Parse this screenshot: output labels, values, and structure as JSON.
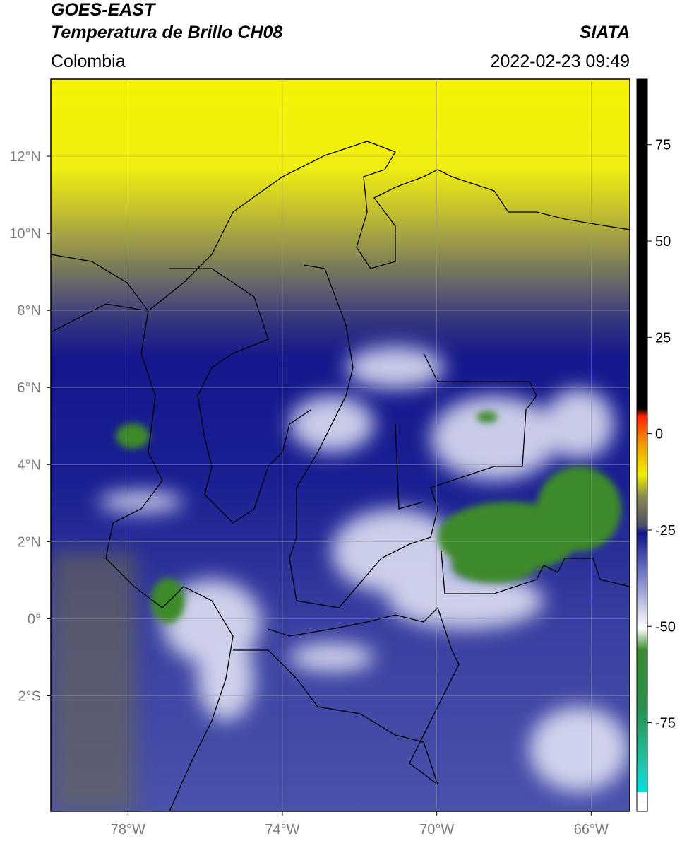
{
  "header": {
    "title": "GOES-EAST",
    "subtitle": "Temperatura de Brillo CH08",
    "source": "SIATA",
    "region": "Colombia",
    "datetime": "2022-02-23 09:49"
  },
  "map": {
    "xlim": [
      -80,
      -65
    ],
    "ylim": [
      -5,
      14
    ],
    "grid": true,
    "xticks": [
      {
        "value": -78,
        "label": "78°W"
      },
      {
        "value": -74,
        "label": "74°W"
      },
      {
        "value": -70,
        "label": "70°W"
      },
      {
        "value": -66,
        "label": "66°W"
      }
    ],
    "yticks": [
      {
        "value": 12,
        "label": "12°N"
      },
      {
        "value": 10,
        "label": "10°N"
      },
      {
        "value": 8,
        "label": "8°N"
      },
      {
        "value": 6,
        "label": "6°N"
      },
      {
        "value": 4,
        "label": "4°N"
      },
      {
        "value": 2,
        "label": "2°N"
      },
      {
        "value": 0,
        "label": "0°"
      },
      {
        "value": -2,
        "label": "2°S"
      }
    ]
  },
  "colorbar": {
    "lim": [
      -98,
      92
    ],
    "ticks": [
      75,
      50,
      25,
      0,
      -25,
      -50,
      -75
    ]
  }
}
